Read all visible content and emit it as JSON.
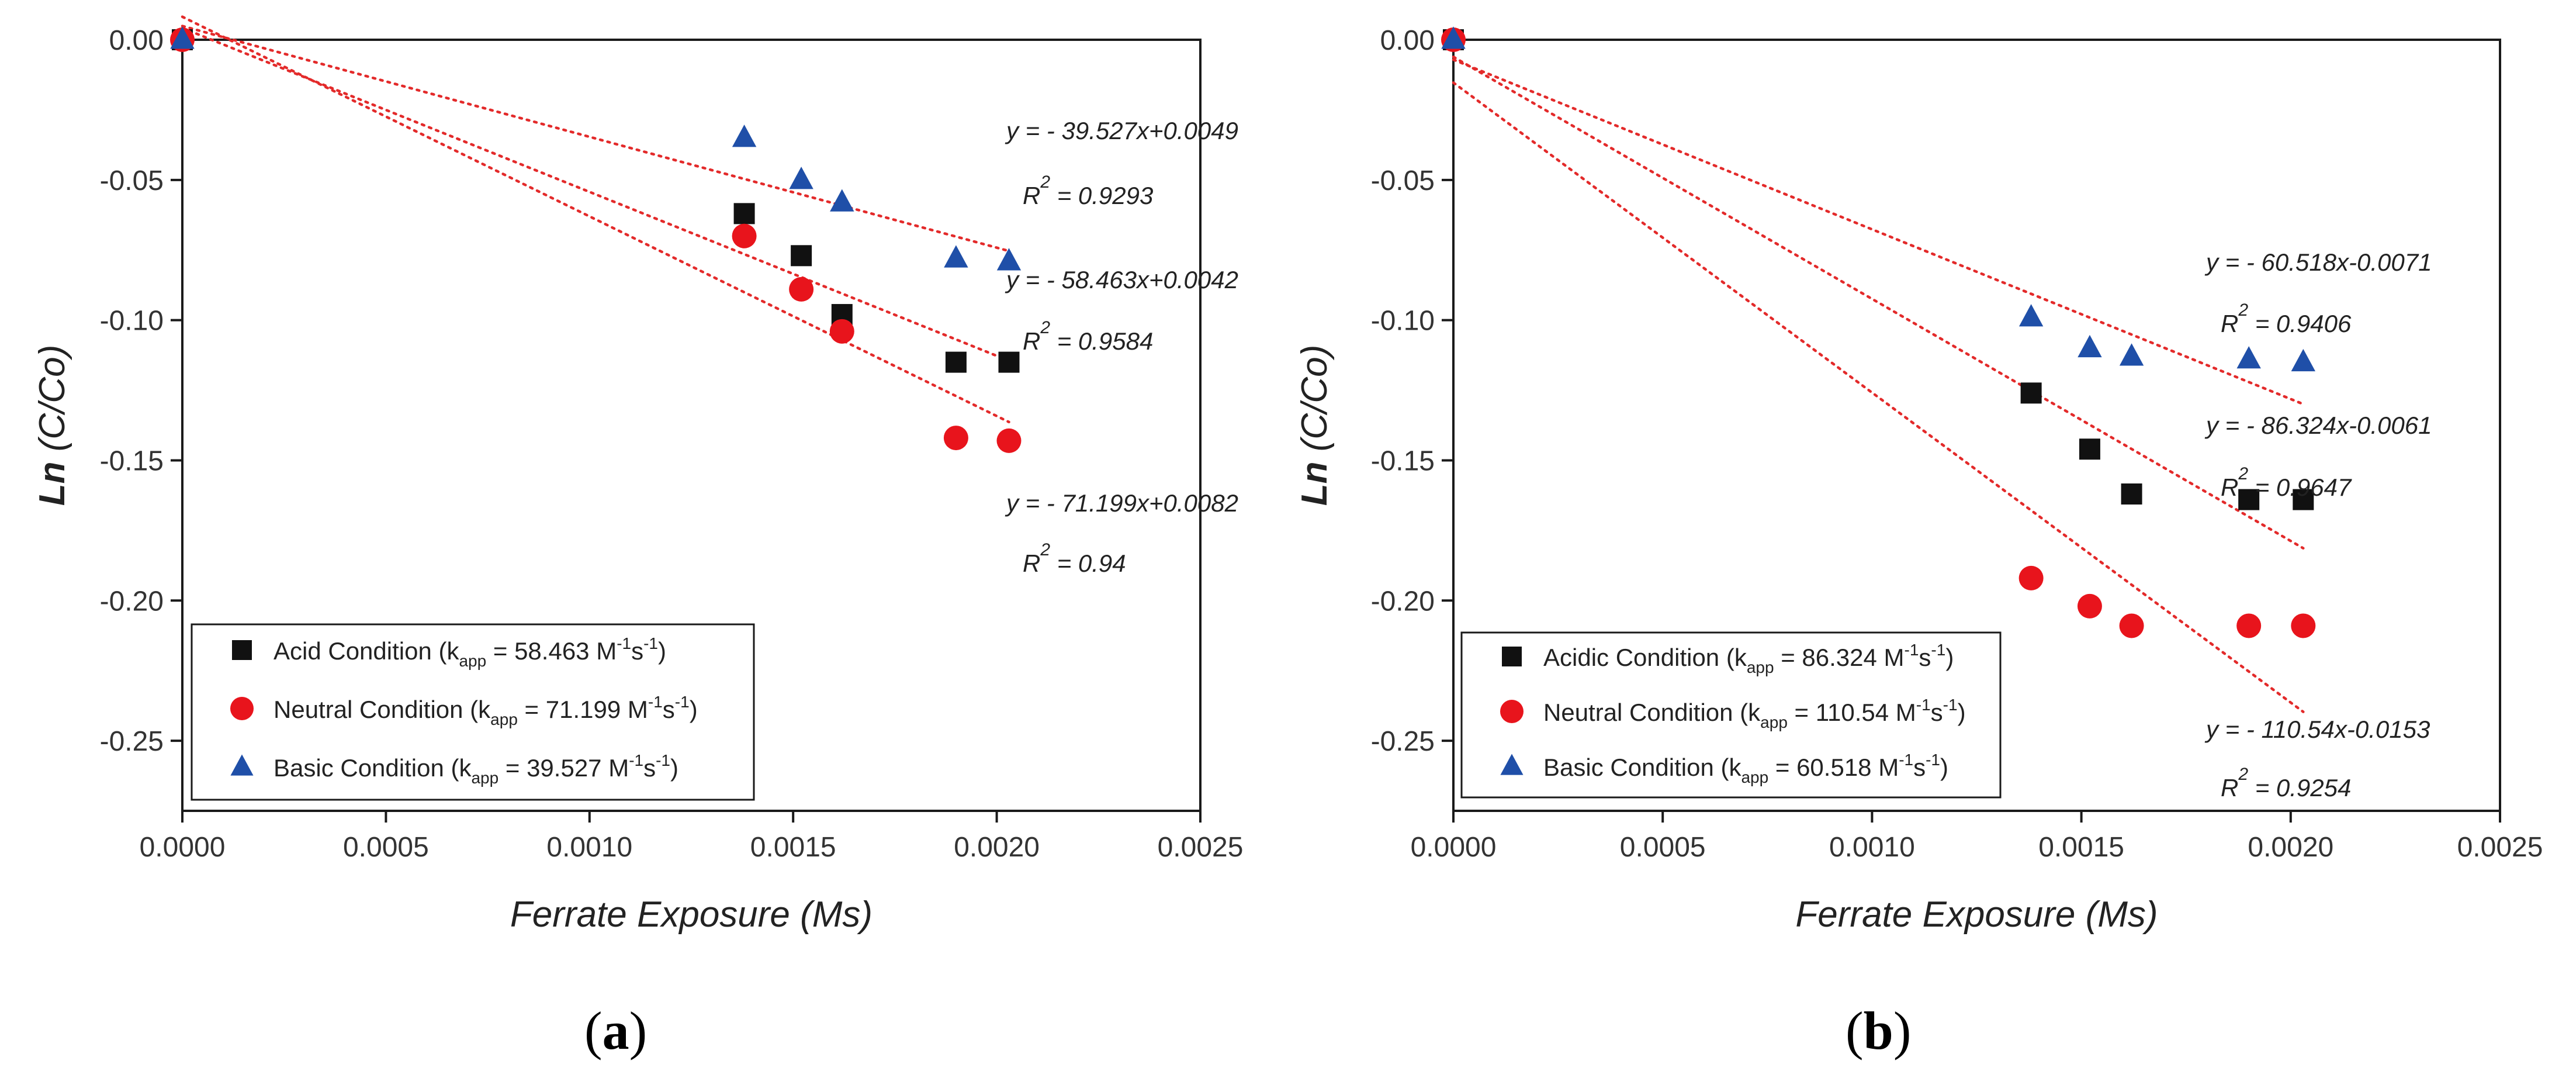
{
  "figure": {
    "caption_a_open": "(",
    "caption_a_letter": "a",
    "caption_a_close": ")",
    "caption_b_open": "(",
    "caption_b_letter": "b",
    "caption_b_close": ")"
  },
  "chart_data": [
    {
      "type": "scatter",
      "id": "a",
      "xlabel": "Ferrate Exposure (Ms)",
      "ylabel_ln": "Ln",
      "ylabel_rest": " (C/Co)",
      "xlim": [
        0,
        0.0025
      ],
      "ylim": [
        -0.275,
        0
      ],
      "xticks": [
        0,
        0.0005,
        0.001,
        0.0015,
        0.002,
        0.0025
      ],
      "xtick_labels": [
        "0.0000",
        "0.0005",
        "0.0010",
        "0.0015",
        "0.0020",
        "0.0025"
      ],
      "yticks": [
        0,
        -0.05,
        -0.1,
        -0.15,
        -0.2,
        -0.25
      ],
      "ytick_labels": [
        "0.00",
        "-0.05",
        "-0.10",
        "-0.15",
        "-0.20",
        "-0.25"
      ],
      "grid": false,
      "legend": "bottom-left",
      "series": [
        {
          "name": "Acid Condition",
          "legend_pre": "Acid Condition (k",
          "legend_sub": "app",
          "legend_mid": " = 58.463 M",
          "legend_sup1": "-1",
          "legend_s": "s",
          "legend_sup2": "-1",
          "legend_post": ")",
          "marker": "square",
          "color": "#111111",
          "x": [
            0,
            0.00138,
            0.00152,
            0.00162,
            0.0019,
            0.00203
          ],
          "y": [
            0,
            -0.062,
            -0.077,
            -0.098,
            -0.115,
            -0.115
          ],
          "fit": {
            "slope": -58.463,
            "intercept": 0.0042,
            "x_end": 0.00203
          },
          "equation": "y = - 58.463x+0.0042",
          "r2_prefix": "R",
          "r2_exp": "2",
          "r2_value": " = 0.9584"
        },
        {
          "name": "Neutral Condition",
          "legend_pre": "Neutral Condition (k",
          "legend_sub": "app",
          "legend_mid": " = 71.199 M",
          "legend_sup1": "-1",
          "legend_s": "s",
          "legend_sup2": "-1",
          "legend_post": ")",
          "marker": "circle",
          "color": "#e8141c",
          "x": [
            0,
            0.00138,
            0.00152,
            0.00162,
            0.0019,
            0.00203
          ],
          "y": [
            0,
            -0.07,
            -0.089,
            -0.104,
            -0.142,
            -0.143
          ],
          "fit": {
            "slope": -71.199,
            "intercept": 0.0082,
            "x_end": 0.00203
          },
          "equation": "y = - 71.199x+0.0082",
          "r2_prefix": "R",
          "r2_exp": "2",
          "r2_value": " = 0.94"
        },
        {
          "name": "Basic Condition",
          "legend_pre": "Basic Condition (k",
          "legend_sub": "app",
          "legend_mid": " = 39.527 M",
          "legend_sup1": "-1",
          "legend_s": "s",
          "legend_sup2": "-1",
          "legend_post": ")",
          "marker": "triangle",
          "color": "#1f4fa8",
          "x": [
            0,
            0.00138,
            0.00152,
            0.00162,
            0.0019,
            0.00203
          ],
          "y": [
            0,
            -0.035,
            -0.05,
            -0.058,
            -0.078,
            -0.079
          ],
          "fit": {
            "slope": -39.527,
            "intercept": 0.0049,
            "x_end": 0.00203
          },
          "equation": "y = - 39.527x+0.0049",
          "r2_prefix": "R",
          "r2_exp": "2",
          "r2_value": " = 0.9293"
        }
      ]
    },
    {
      "type": "scatter",
      "id": "b",
      "xlabel": "Ferrate Exposure (Ms)",
      "ylabel_ln": "Ln",
      "ylabel_rest": " (C/Co)",
      "xlim": [
        0,
        0.0025
      ],
      "ylim": [
        -0.275,
        0
      ],
      "xticks": [
        0,
        0.0005,
        0.001,
        0.0015,
        0.002,
        0.0025
      ],
      "xtick_labels": [
        "0.0000",
        "0.0005",
        "0.0010",
        "0.0015",
        "0.0020",
        "0.0025"
      ],
      "yticks": [
        0,
        -0.05,
        -0.1,
        -0.15,
        -0.2,
        -0.25
      ],
      "ytick_labels": [
        "0.00",
        "-0.05",
        "-0.10",
        "-0.15",
        "-0.20",
        "-0.25"
      ],
      "grid": false,
      "legend": "bottom-left",
      "series": [
        {
          "name": "Acidic Condition",
          "legend_pre": "Acidic Condition (k",
          "legend_sub": "app",
          "legend_mid": " = 86.324 M",
          "legend_sup1": "-1",
          "legend_s": "s",
          "legend_sup2": "-1",
          "legend_post": ")",
          "marker": "square",
          "color": "#111111",
          "x": [
            0,
            0.00138,
            0.00152,
            0.00162,
            0.0019,
            0.00203
          ],
          "y": [
            0,
            -0.126,
            -0.146,
            -0.162,
            -0.164,
            -0.164
          ],
          "fit": {
            "slope": -86.324,
            "intercept": -0.0061,
            "x_end": 0.00203
          },
          "equation": "y = - 86.324x-0.0061",
          "r2_prefix": "R",
          "r2_exp": "2",
          "r2_value": " = 0.9647"
        },
        {
          "name": "Neutral Condition",
          "legend_pre": "Neutral Condition (k",
          "legend_sub": "app",
          "legend_mid": " = 110.54 M",
          "legend_sup1": "-1",
          "legend_s": "s",
          "legend_sup2": "-1",
          "legend_post": ")",
          "marker": "circle",
          "color": "#e8141c",
          "x": [
            0,
            0.00138,
            0.00152,
            0.00162,
            0.0019,
            0.00203
          ],
          "y": [
            0,
            -0.192,
            -0.202,
            -0.209,
            -0.209,
            -0.209
          ],
          "fit": {
            "slope": -110.54,
            "intercept": -0.0153,
            "x_end": 0.00203
          },
          "equation": "y = - 110.54x-0.0153",
          "r2_prefix": "R",
          "r2_exp": "2",
          "r2_value": " = 0.9254"
        },
        {
          "name": "Basic Condition",
          "legend_pre": "Basic Condition (k",
          "legend_sub": "app",
          "legend_mid": " = 60.518 M",
          "legend_sup1": "-1",
          "legend_s": "s",
          "legend_sup2": "-1",
          "legend_post": ")",
          "marker": "triangle",
          "color": "#1f4fa8",
          "x": [
            0,
            0.00138,
            0.00152,
            0.00162,
            0.0019,
            0.00203
          ],
          "y": [
            0,
            -0.099,
            -0.11,
            -0.113,
            -0.114,
            -0.115
          ],
          "fit": {
            "slope": -60.518,
            "intercept": -0.0071,
            "x_end": 0.00203
          },
          "equation": "y = - 60.518x-0.0071",
          "r2_prefix": "R",
          "r2_exp": "2",
          "r2_value": " = 0.9406"
        }
      ]
    }
  ]
}
